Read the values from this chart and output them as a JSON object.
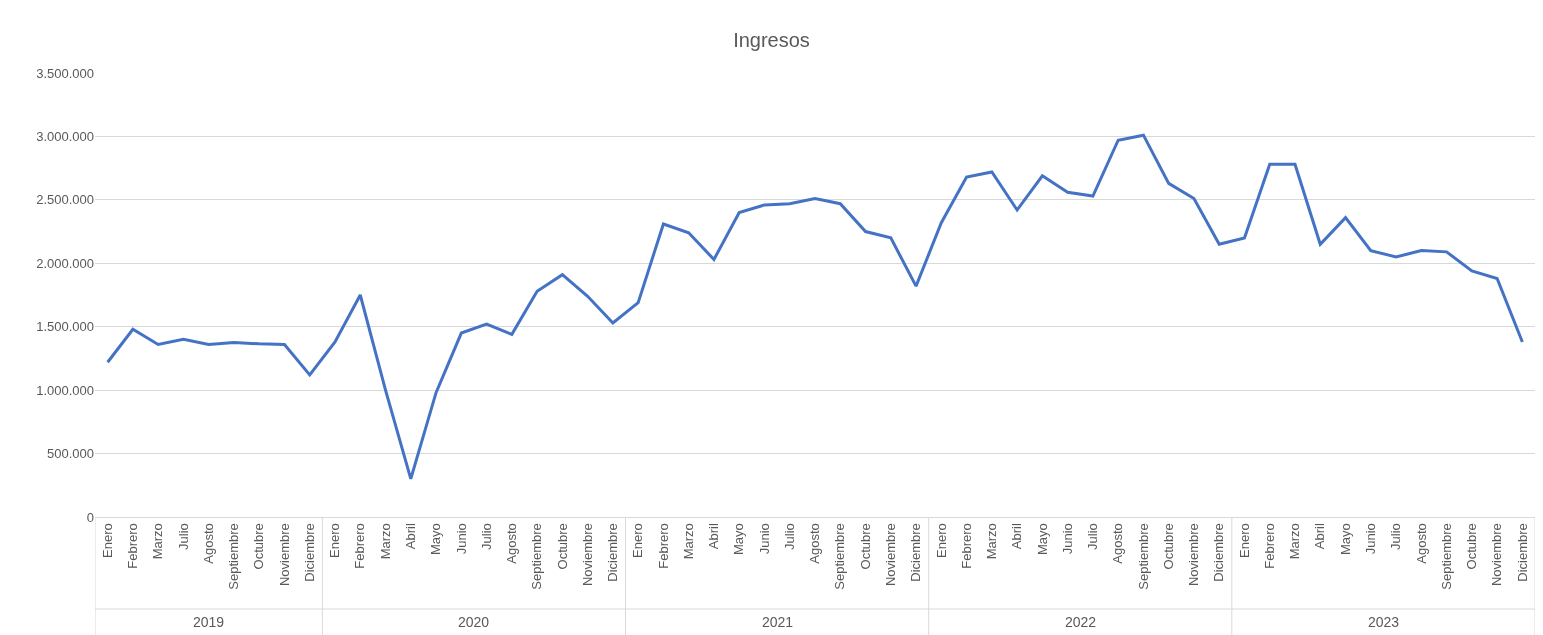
{
  "chart_data": {
    "type": "line",
    "title": "Ingresos",
    "categories": [
      "Enero",
      "Febrero",
      "Marzo",
      "Julio",
      "Agosto",
      "Septiembre",
      "Octubre",
      "Noviembre",
      "Diciembre",
      "Enero",
      "Febrero",
      "Marzo",
      "Abril",
      "Mayo",
      "Junio",
      "Julio",
      "Agosto",
      "Septiembre",
      "Octubre",
      "Noviembre",
      "Diciembre",
      "Enero",
      "Febrero",
      "Marzo",
      "Abril",
      "Mayo",
      "Junio",
      "Julio",
      "Agosto",
      "Septiembre",
      "Octubre",
      "Noviembre",
      "Diciembre",
      "Enero",
      "Febrero",
      "Marzo",
      "Abril",
      "Mayo",
      "Junio",
      "Julio",
      "Agosto",
      "Septiembre",
      "Octubre",
      "Noviembre",
      "Diciembre",
      "Enero",
      "Febrero",
      "Marzo",
      "Abril",
      "Mayo",
      "Junio",
      "Julio",
      "Agosto",
      "Septiembre",
      "Octubre",
      "Noviembre",
      "Diciembre"
    ],
    "series": [
      {
        "color": "#4472c4",
        "values": [
          1220000,
          1480000,
          1360000,
          1400000,
          1360000,
          1375000,
          1365000,
          1360000,
          1120000,
          1380000,
          1750000,
          1000000,
          300000,
          980000,
          1450000,
          1520000,
          1440000,
          1780000,
          1910000,
          1740000,
          1530000,
          1690000,
          2310000,
          2240000,
          2030000,
          2400000,
          2460000,
          2470000,
          2510000,
          2470000,
          2250000,
          2200000,
          1820000,
          2320000,
          2680000,
          2720000,
          2420000,
          2690000,
          2560000,
          2530000,
          2970000,
          3010000,
          2630000,
          2510000,
          2150000,
          2200000,
          2780000,
          2780000,
          2150000,
          2360000,
          2100000,
          2050000,
          2100000,
          2090000,
          1940000,
          1880000,
          1380000
        ]
      }
    ],
    "ylim": [
      0,
      3500000
    ],
    "yticks": [
      0,
      {
        "value": 500000,
        "label": "500.000"
      },
      {
        "value": 1000000,
        "label": "1.000.000"
      },
      {
        "value": 1500000,
        "label": "1.500.000"
      },
      {
        "value": 2000000,
        "label": "2.000.000"
      },
      {
        "value": 2500000,
        "label": "2.500.000"
      },
      {
        "value": 3000000,
        "label": "3.000.000"
      },
      {
        "value": 3500000,
        "label": "3.500.000"
      }
    ],
    "grid": "y",
    "annotations": [
      "2019",
      "2020",
      "2021",
      "2022",
      "2023"
    ]
  }
}
